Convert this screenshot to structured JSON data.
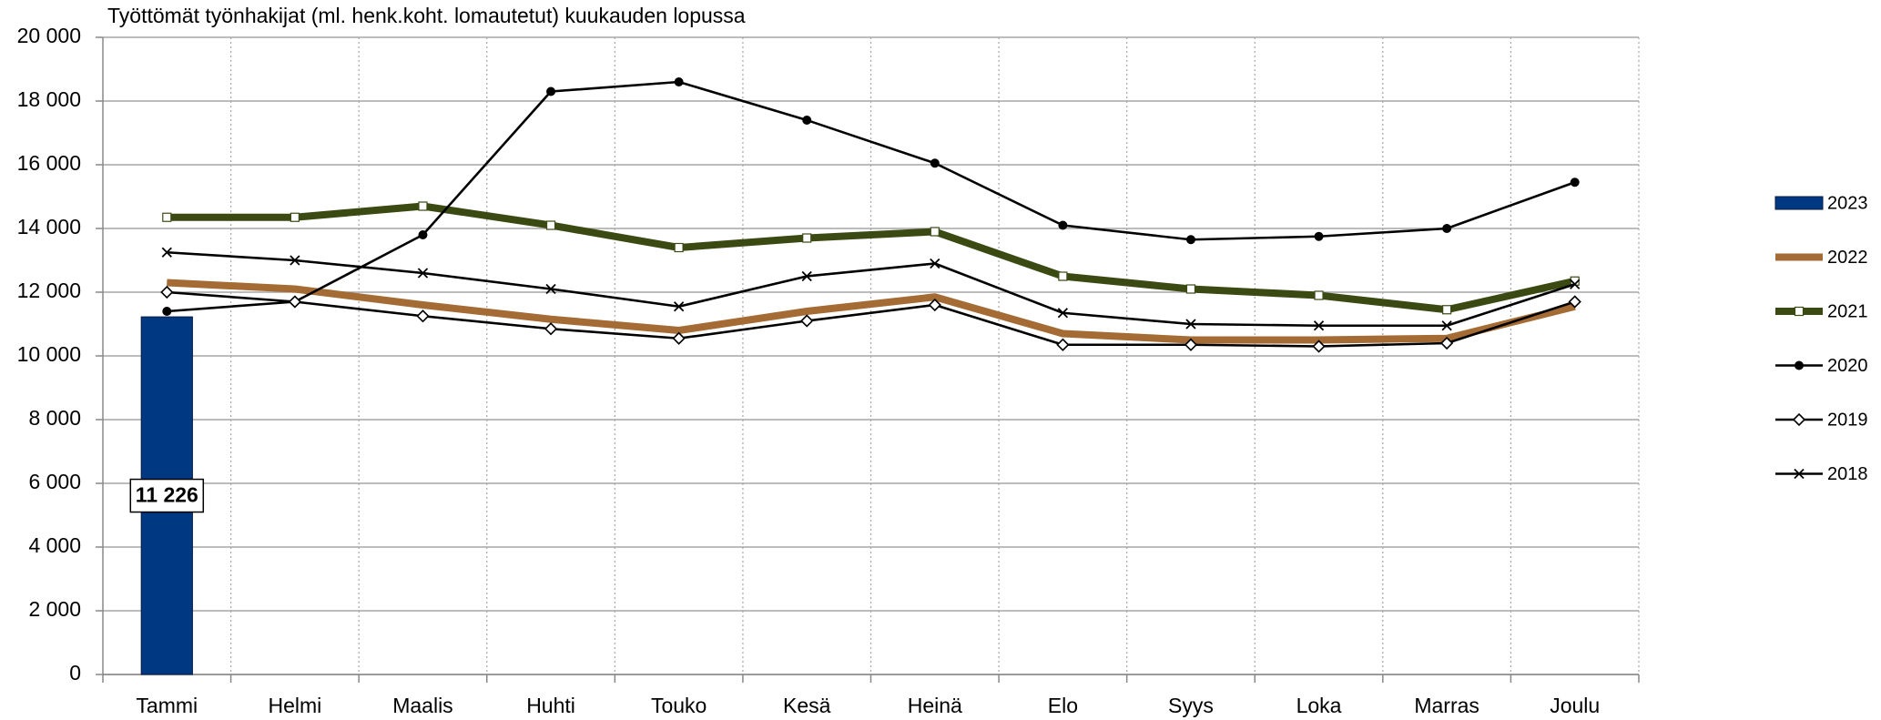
{
  "chart_data": {
    "type": "line",
    "title": "Työttömät työnhakijat (ml. henk.koht. lomautetut) kuukauden lopussa",
    "categories": [
      "Tammi",
      "Helmi",
      "Maalis",
      "Huhti",
      "Touko",
      "Kesä",
      "Heinä",
      "Elo",
      "Syys",
      "Loka",
      "Marras",
      "Joulu"
    ],
    "series": [
      {
        "name": "2023",
        "type": "bar",
        "color": "#003882",
        "values": [
          11226,
          null,
          null,
          null,
          null,
          null,
          null,
          null,
          null,
          null,
          null,
          null
        ],
        "value_labels": [
          "11 226",
          null,
          null,
          null,
          null,
          null,
          null,
          null,
          null,
          null,
          null,
          null
        ]
      },
      {
        "name": "2022",
        "color": "#a56b34",
        "width": "thick",
        "values": [
          12300,
          12100,
          11600,
          11150,
          10800,
          11400,
          11850,
          10700,
          10500,
          10500,
          10550,
          11550
        ]
      },
      {
        "name": "2021",
        "color": "#3a4a12",
        "width": "thick",
        "marker": "square",
        "values": [
          14350,
          14350,
          14700,
          14100,
          13400,
          13700,
          13900,
          12500,
          12100,
          11900,
          11450,
          12350
        ]
      },
      {
        "name": "2020",
        "color": "#000000",
        "marker": "circle",
        "values": [
          11400,
          11700,
          13800,
          18300,
          18600,
          17400,
          16050,
          14100,
          13650,
          13750,
          14000,
          15450
        ]
      },
      {
        "name": "2019",
        "color": "#000000",
        "marker": "diamond",
        "values": [
          12000,
          11700,
          11250,
          10850,
          10550,
          11100,
          11600,
          10350,
          10350,
          10300,
          10400,
          11700
        ]
      },
      {
        "name": "2018",
        "color": "#000000",
        "marker": "x",
        "values": [
          13250,
          13000,
          12600,
          12100,
          11550,
          12500,
          12900,
          11350,
          11000,
          10950,
          10950,
          12250
        ]
      }
    ],
    "ylim": [
      0,
      20000
    ],
    "yticks": [
      0,
      {
        "value": 2000,
        "label": "2 000"
      },
      {
        "value": 4000,
        "label": "4 000"
      },
      {
        "value": 6000,
        "label": "6 000"
      },
      {
        "value": 8000,
        "label": "8 000"
      },
      {
        "value": 10000,
        "label": "10 000"
      },
      {
        "value": 12000,
        "label": "12 000"
      },
      {
        "value": 14000,
        "label": "14 000"
      },
      {
        "value": 16000,
        "label": "16 000"
      },
      {
        "value": 18000,
        "label": "18 000"
      },
      {
        "value": 20000,
        "label": "20 000"
      }
    ],
    "grid": true,
    "legend": "right"
  }
}
